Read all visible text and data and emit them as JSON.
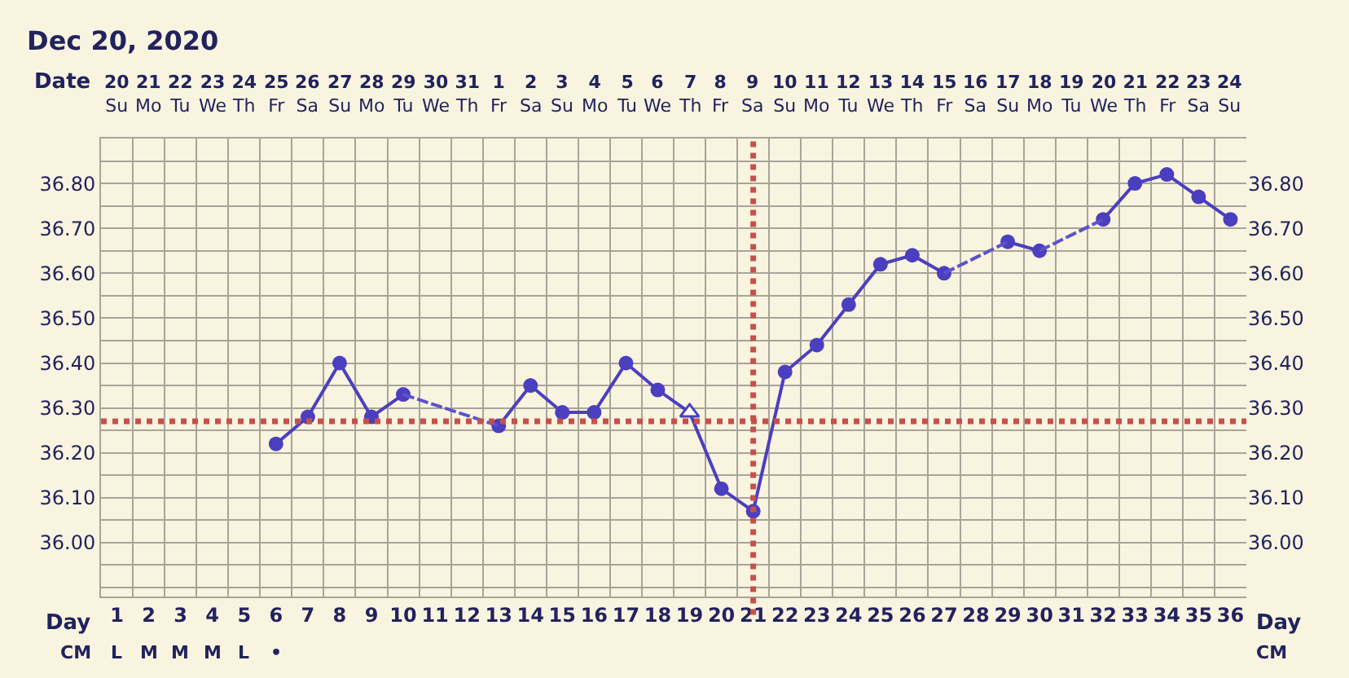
{
  "chart_data": {
    "type": "line",
    "title": "Dec 20, 2020",
    "xlim": [
      0.5,
      36.5
    ],
    "xticks": [
      1,
      2,
      3,
      4,
      5,
      6,
      7,
      8,
      9,
      10,
      11,
      12,
      13,
      14,
      15,
      16,
      17,
      18,
      19,
      20,
      21,
      22,
      23,
      24,
      25,
      26,
      27,
      28,
      29,
      30,
      31,
      32,
      33,
      34,
      35,
      36
    ],
    "ylim": [
      35.88,
      36.9
    ],
    "yticks": [
      {
        "value": 35.9,
        "label": null
      },
      {
        "value": 35.95,
        "label": null
      },
      {
        "value": 36.0,
        "label": "36.00"
      },
      {
        "value": 36.05,
        "label": null
      },
      {
        "value": 36.1,
        "label": "36.10"
      },
      {
        "value": 36.15,
        "label": null
      },
      {
        "value": 36.2,
        "label": "36.20"
      },
      {
        "value": 36.25,
        "label": null
      },
      {
        "value": 36.3,
        "label": "36.30"
      },
      {
        "value": 36.35,
        "label": null
      },
      {
        "value": 36.4,
        "label": "36.40"
      },
      {
        "value": 36.45,
        "label": null
      },
      {
        "value": 36.5,
        "label": "36.50"
      },
      {
        "value": 36.55,
        "label": null
      },
      {
        "value": 36.6,
        "label": "36.60"
      },
      {
        "value": 36.65,
        "label": null
      },
      {
        "value": 36.7,
        "label": "36.70"
      },
      {
        "value": 36.75,
        "label": null
      },
      {
        "value": 36.8,
        "label": "36.80"
      },
      {
        "value": 36.85,
        "label": null
      }
    ],
    "y2lim": [
      35.88,
      36.9
    ],
    "y2ticks": [
      {
        "value": 36.0,
        "label": "36.00"
      },
      {
        "value": 36.1,
        "label": "36.10"
      },
      {
        "value": 36.2,
        "label": "36.20"
      },
      {
        "value": 36.3,
        "label": "36.30"
      },
      {
        "value": 36.4,
        "label": "36.40"
      },
      {
        "value": 36.5,
        "label": "36.50"
      },
      {
        "value": 36.6,
        "label": "36.60"
      },
      {
        "value": 36.7,
        "label": "36.70"
      },
      {
        "value": 36.8,
        "label": "36.80"
      }
    ],
    "grid": true,
    "series": [
      {
        "color": "#4b3fbf",
        "line_style": "solid",
        "marker": "none",
        "x": [
          6,
          7,
          8,
          9,
          10,
          11,
          12,
          13,
          14,
          15,
          16,
          17,
          18,
          19,
          20,
          21,
          22,
          23,
          24,
          25,
          26,
          27,
          28,
          29,
          30,
          31,
          32,
          33,
          34,
          35,
          36
        ],
        "values": [
          36.22,
          36.28,
          36.4,
          36.28,
          36.33,
          null,
          null,
          36.26,
          36.35,
          36.29,
          36.29,
          36.4,
          36.34,
          36.29,
          36.12,
          36.07,
          36.38,
          36.44,
          36.53,
          36.62,
          36.64,
          36.6,
          null,
          36.67,
          36.65,
          null,
          36.72,
          36.8,
          36.82,
          36.77,
          36.72
        ]
      },
      {
        "type": "scatter",
        "color": "#4b3fbf",
        "marker": "circle",
        "x": [
          6,
          7,
          8,
          9,
          10,
          13,
          14,
          15,
          16,
          17,
          18,
          20,
          21,
          22,
          23,
          24,
          25,
          26,
          27,
          29,
          30,
          32,
          33,
          34,
          35,
          36
        ],
        "values": [
          36.22,
          36.28,
          36.4,
          36.28,
          36.33,
          36.26,
          36.35,
          36.29,
          36.29,
          36.4,
          36.34,
          36.12,
          36.07,
          36.38,
          36.44,
          36.53,
          36.62,
          36.64,
          36.6,
          36.67,
          36.65,
          36.72,
          36.8,
          36.82,
          36.77,
          36.72
        ]
      },
      {
        "type": "scatter",
        "color": "#4b3fbf",
        "marker": "triangle",
        "x": [
          19
        ],
        "values": [
          36.29
        ]
      },
      {
        "color": "#5d52cc",
        "line_style": "dashed",
        "marker": "none",
        "x": [
          10,
          11,
          12,
          13
        ],
        "values": [
          36.33,
          null,
          null,
          36.26
        ]
      },
      {
        "color": "#5d52cc",
        "line_style": "dashed",
        "marker": "none",
        "x": [
          27,
          28,
          29
        ],
        "values": [
          36.6,
          null,
          36.67
        ]
      },
      {
        "color": "#5d52cc",
        "line_style": "dashed",
        "marker": "none",
        "x": [
          30,
          31,
          32
        ],
        "values": [
          36.65,
          null,
          36.72
        ]
      }
    ],
    "ref_lines": [
      {
        "axis": "y",
        "value": 36.27,
        "color": "#c8504a",
        "line_style": "dotted"
      },
      {
        "axis": "x",
        "value": 21,
        "color": "#c8504a",
        "line_style": "dotted"
      }
    ],
    "annotations": [
      "Date",
      "Day",
      "CM",
      "20 Su",
      "21 Mo",
      "22 Tu",
      "23 We",
      "24 Th",
      "25 Fr",
      "26 Sa",
      "27 Su",
      "28 Mo",
      "29 Tu",
      "30 We",
      "31 Th",
      "1 Fr",
      "2 Sa",
      "3 Su",
      "4 Mo",
      "5 Tu",
      "6 We",
      "7 Th",
      "8 Fr",
      "9 Sa",
      "10 Su",
      "11 Mo",
      "12 Tu",
      "13 We",
      "14 Th",
      "15 Fr",
      "16 Sa",
      "17 Su",
      "18 Mo",
      "19 Tu",
      "20 We",
      "21 Th",
      "22 Fr",
      "23 Sa",
      "24 Su",
      "L",
      "M",
      "M",
      "M",
      "L",
      "•"
    ]
  }
}
